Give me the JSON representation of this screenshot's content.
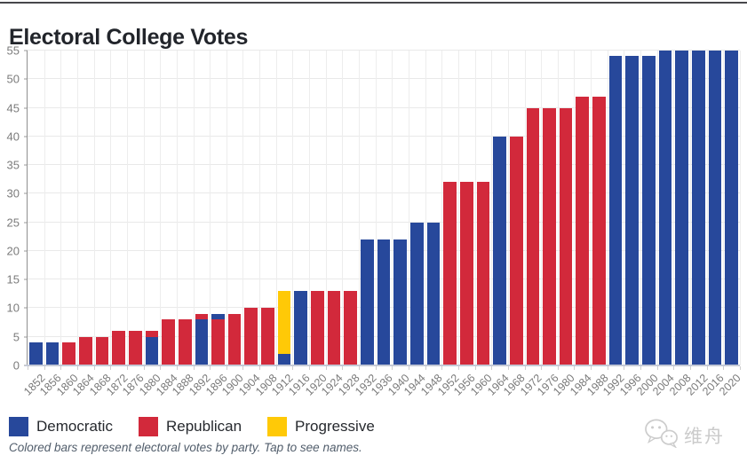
{
  "page": {
    "footnote": "Colored bars represent electoral votes by party. Tap to see names.",
    "watermark": {
      "icon": "wechat-logo-icon",
      "text": "维舟"
    }
  },
  "chart_data": {
    "type": "bar",
    "stacked": true,
    "title": "Electoral College Votes",
    "xlabel": "",
    "ylabel": "",
    "ylim": [
      0,
      55
    ],
    "yticks": [
      0,
      5,
      10,
      15,
      20,
      25,
      30,
      35,
      40,
      45,
      50,
      55
    ],
    "grid": true,
    "x_tick_rotation": -45,
    "legend_position": "bottom-left",
    "series": [
      {
        "name": "Democratic",
        "color": "#27489B"
      },
      {
        "name": "Republican",
        "color": "#D2293B"
      },
      {
        "name": "Progressive",
        "color": "#FFC907"
      }
    ],
    "categories": [
      "1852",
      "1856",
      "1860",
      "1864",
      "1868",
      "1872",
      "1876",
      "1880",
      "1884",
      "1888",
      "1892",
      "1896",
      "1900",
      "1904",
      "1908",
      "1912",
      "1916",
      "1920",
      "1924",
      "1928",
      "1932",
      "1936",
      "1940",
      "1944",
      "1948",
      "1952",
      "1956",
      "1960",
      "1964",
      "1968",
      "1972",
      "1976",
      "1980",
      "1984",
      "1988",
      "1992",
      "1996",
      "2000",
      "2004",
      "2008",
      "2012",
      "2016",
      "2020"
    ],
    "bars": [
      {
        "year": "1852",
        "segments": [
          {
            "party": "Democratic",
            "votes": 4
          }
        ]
      },
      {
        "year": "1856",
        "segments": [
          {
            "party": "Democratic",
            "votes": 4
          }
        ]
      },
      {
        "year": "1860",
        "segments": [
          {
            "party": "Republican",
            "votes": 4
          }
        ]
      },
      {
        "year": "1864",
        "segments": [
          {
            "party": "Republican",
            "votes": 5
          }
        ]
      },
      {
        "year": "1868",
        "segments": [
          {
            "party": "Republican",
            "votes": 5
          }
        ]
      },
      {
        "year": "1872",
        "segments": [
          {
            "party": "Republican",
            "votes": 6
          }
        ]
      },
      {
        "year": "1876",
        "segments": [
          {
            "party": "Republican",
            "votes": 6
          }
        ]
      },
      {
        "year": "1880",
        "segments": [
          {
            "party": "Democratic",
            "votes": 5
          },
          {
            "party": "Republican",
            "votes": 1
          }
        ]
      },
      {
        "year": "1884",
        "segments": [
          {
            "party": "Republican",
            "votes": 8
          }
        ]
      },
      {
        "year": "1888",
        "segments": [
          {
            "party": "Republican",
            "votes": 8
          }
        ]
      },
      {
        "year": "1892",
        "segments": [
          {
            "party": "Democratic",
            "votes": 8
          },
          {
            "party": "Republican",
            "votes": 1
          }
        ]
      },
      {
        "year": "1896",
        "segments": [
          {
            "party": "Republican",
            "votes": 8
          },
          {
            "party": "Democratic",
            "votes": 1
          }
        ]
      },
      {
        "year": "1900",
        "segments": [
          {
            "party": "Republican",
            "votes": 9
          }
        ]
      },
      {
        "year": "1904",
        "segments": [
          {
            "party": "Republican",
            "votes": 10
          }
        ]
      },
      {
        "year": "1908",
        "segments": [
          {
            "party": "Republican",
            "votes": 10
          }
        ]
      },
      {
        "year": "1912",
        "segments": [
          {
            "party": "Democratic",
            "votes": 2
          },
          {
            "party": "Progressive",
            "votes": 11
          }
        ]
      },
      {
        "year": "1916",
        "segments": [
          {
            "party": "Democratic",
            "votes": 13
          }
        ]
      },
      {
        "year": "1920",
        "segments": [
          {
            "party": "Republican",
            "votes": 13
          }
        ]
      },
      {
        "year": "1924",
        "segments": [
          {
            "party": "Republican",
            "votes": 13
          }
        ]
      },
      {
        "year": "1928",
        "segments": [
          {
            "party": "Republican",
            "votes": 13
          }
        ]
      },
      {
        "year": "1932",
        "segments": [
          {
            "party": "Democratic",
            "votes": 22
          }
        ]
      },
      {
        "year": "1936",
        "segments": [
          {
            "party": "Democratic",
            "votes": 22
          }
        ]
      },
      {
        "year": "1940",
        "segments": [
          {
            "party": "Democratic",
            "votes": 22
          }
        ]
      },
      {
        "year": "1944",
        "segments": [
          {
            "party": "Democratic",
            "votes": 25
          }
        ]
      },
      {
        "year": "1948",
        "segments": [
          {
            "party": "Democratic",
            "votes": 25
          }
        ]
      },
      {
        "year": "1952",
        "segments": [
          {
            "party": "Republican",
            "votes": 32
          }
        ]
      },
      {
        "year": "1956",
        "segments": [
          {
            "party": "Republican",
            "votes": 32
          }
        ]
      },
      {
        "year": "1960",
        "segments": [
          {
            "party": "Republican",
            "votes": 32
          }
        ]
      },
      {
        "year": "1964",
        "segments": [
          {
            "party": "Democratic",
            "votes": 40
          }
        ]
      },
      {
        "year": "1968",
        "segments": [
          {
            "party": "Republican",
            "votes": 40
          }
        ]
      },
      {
        "year": "1972",
        "segments": [
          {
            "party": "Republican",
            "votes": 45
          }
        ]
      },
      {
        "year": "1976",
        "segments": [
          {
            "party": "Republican",
            "votes": 45
          }
        ]
      },
      {
        "year": "1980",
        "segments": [
          {
            "party": "Republican",
            "votes": 45
          }
        ]
      },
      {
        "year": "1984",
        "segments": [
          {
            "party": "Republican",
            "votes": 47
          }
        ]
      },
      {
        "year": "1988",
        "segments": [
          {
            "party": "Republican",
            "votes": 47
          }
        ]
      },
      {
        "year": "1992",
        "segments": [
          {
            "party": "Democratic",
            "votes": 54
          }
        ]
      },
      {
        "year": "1996",
        "segments": [
          {
            "party": "Democratic",
            "votes": 54
          }
        ]
      },
      {
        "year": "2000",
        "segments": [
          {
            "party": "Democratic",
            "votes": 54
          }
        ]
      },
      {
        "year": "2004",
        "segments": [
          {
            "party": "Democratic",
            "votes": 55
          }
        ]
      },
      {
        "year": "2008",
        "segments": [
          {
            "party": "Democratic",
            "votes": 55
          }
        ]
      },
      {
        "year": "2012",
        "segments": [
          {
            "party": "Democratic",
            "votes": 55
          }
        ]
      },
      {
        "year": "2016",
        "segments": [
          {
            "party": "Democratic",
            "votes": 55
          }
        ]
      },
      {
        "year": "2020",
        "segments": [
          {
            "party": "Democratic",
            "votes": 55
          }
        ]
      }
    ]
  }
}
